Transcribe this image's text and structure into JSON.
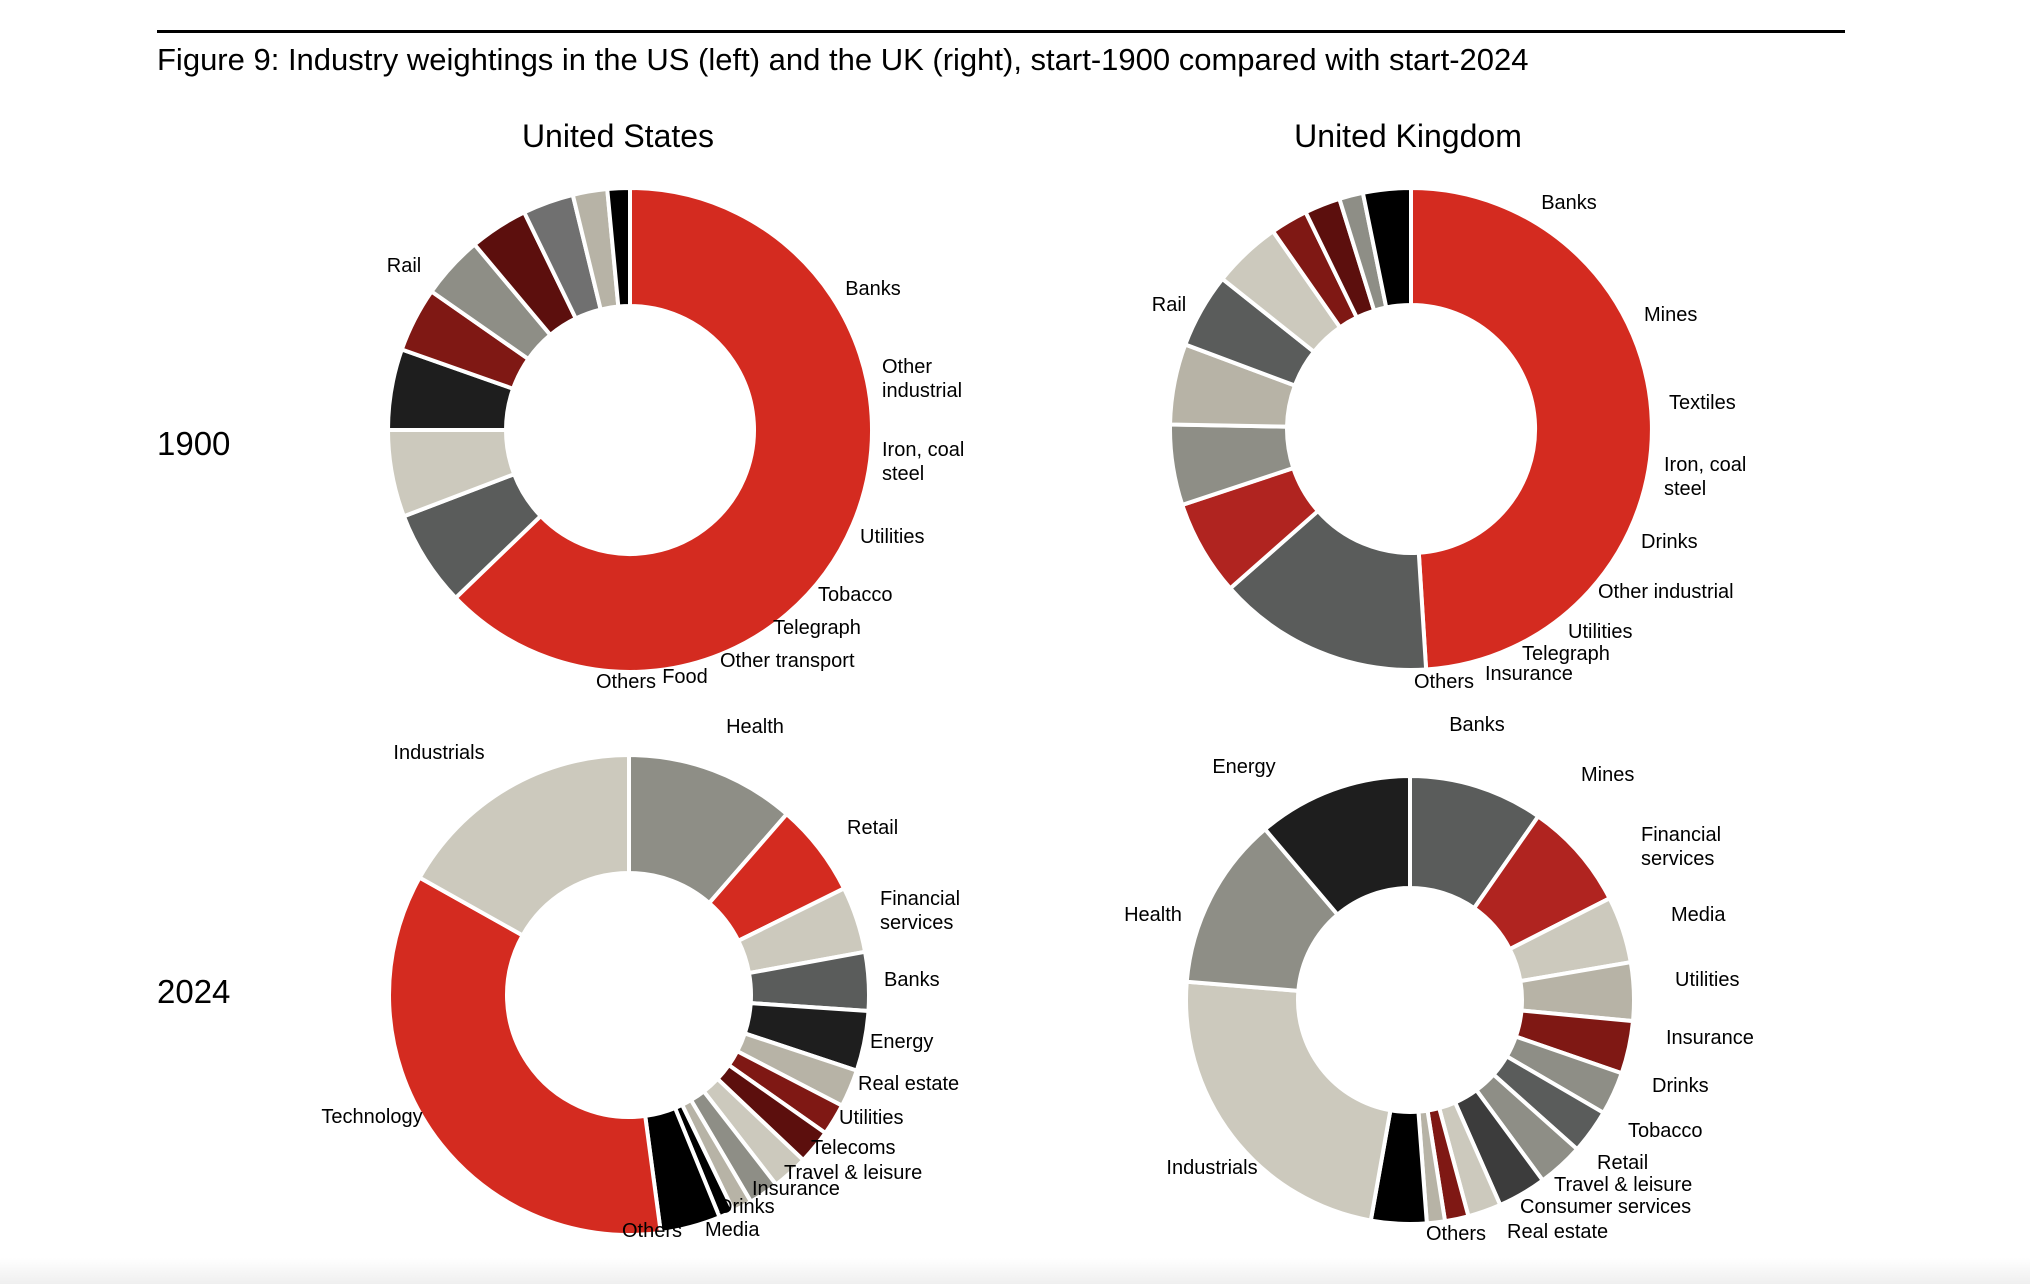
{
  "figure": {
    "title": "Figure 9: Industry weightings in the US (left) and the UK (right), start-1900 compared with start-2024",
    "columns": [
      "United States",
      "United Kingdom"
    ],
    "rows": [
      "1900",
      "2024"
    ]
  },
  "colors": {
    "red": "#d42b20",
    "dark_grey": "#5a5c5b",
    "light_beige": "#ccc9bd",
    "black": "#1e1e1e",
    "maroon": "#7f1814",
    "mid_grey": "#8e8e86",
    "dark_red": "#5c0f0d",
    "tan": "#b7b3a6",
    "crimson": "#b02420",
    "near_black": "#000000"
  },
  "chart_data": [
    {
      "type": "pie",
      "donut": true,
      "title": "United States",
      "row": "1900",
      "labels": [
        "Rail",
        "Banks",
        "Other industrial",
        "Iron, coal steel",
        "Utilities",
        "Tobacco",
        "Telegraph",
        "Other transport",
        "Food",
        "Others"
      ],
      "values": [
        62.8,
        6.4,
        5.8,
        5.4,
        4.3,
        4.2,
        3.9,
        3.4,
        2.3,
        1.5
      ],
      "colors": [
        "#d42b20",
        "#5a5c5b",
        "#ccc9bd",
        "#1e1e1e",
        "#7f1814",
        "#8e8e86",
        "#5c0f0d",
        "#707070",
        "#b7b3a6",
        "#000000"
      ]
    },
    {
      "type": "pie",
      "donut": true,
      "title": "United Kingdom",
      "row": "1900",
      "labels": [
        "Rail",
        "Banks",
        "Mines",
        "Textiles",
        "Iron, coal steel",
        "Drinks",
        "Other industrial",
        "Utilities",
        "Telegraph",
        "Insurance",
        "Others"
      ],
      "values": [
        49.0,
        14.5,
        6.4,
        5.4,
        5.4,
        5.0,
        4.6,
        2.5,
        2.4,
        1.6,
        3.2
      ],
      "colors": [
        "#d42b20",
        "#5a5c5b",
        "#b02420",
        "#8e8e86",
        "#b7b3a6",
        "#5a5c5b",
        "#ccc9bd",
        "#7f1814",
        "#5c0f0d",
        "#8e8e86",
        "#000000"
      ]
    },
    {
      "type": "pie",
      "donut": true,
      "title": "United States",
      "row": "2024",
      "labels": [
        "Health",
        "Retail",
        "Financial services",
        "Banks",
        "Energy",
        "Real estate",
        "Utilities",
        "Telecoms",
        "Travel & leisure",
        "Insurance",
        "Drinks",
        "Media",
        "Others",
        "Technology",
        "Industrials"
      ],
      "values": [
        11.3,
        6.2,
        4.4,
        3.9,
        4.0,
        2.5,
        2.1,
        2.3,
        2.4,
        2.0,
        1.3,
        1.0,
        4.0,
        34.9,
        16.7
      ],
      "colors": [
        "#8e8e86",
        "#d42b20",
        "#ccc9bd",
        "#5a5c5b",
        "#1e1e1e",
        "#b7b3a6",
        "#7f1814",
        "#5c0f0d",
        "#ccc9bd",
        "#8e8e86",
        "#b7b3a6",
        "#000000",
        "#000000",
        "#d42b20",
        "#ccc9bd"
      ]
    },
    {
      "type": "pie",
      "donut": true,
      "title": "United Kingdom",
      "row": "2024",
      "labels": [
        "Banks",
        "Mines",
        "Financial services",
        "Media",
        "Utilities",
        "Insurance",
        "Drinks",
        "Tobacco",
        "Retail",
        "Travel & leisure",
        "Consumer services",
        "Real estate",
        "Others",
        "Industrials",
        "Health",
        "Energy"
      ],
      "values": [
        9.7,
        7.8,
        4.8,
        4.2,
        3.8,
        3.1,
        3.2,
        3.3,
        3.5,
        2.4,
        1.7,
        1.3,
        4.0,
        23.5,
        12.5,
        11.2
      ],
      "colors": [
        "#5a5c5b",
        "#b02420",
        "#ccc9bd",
        "#b7b3a6",
        "#7f1814",
        "#8e8e86",
        "#5a5c5b",
        "#8e8e86",
        "#3c3c3c",
        "#ccc9bd",
        "#7f1814",
        "#b7b3a6",
        "#000000",
        "#ccc9bd",
        "#8e8e86",
        "#1e1e1e"
      ]
    }
  ]
}
